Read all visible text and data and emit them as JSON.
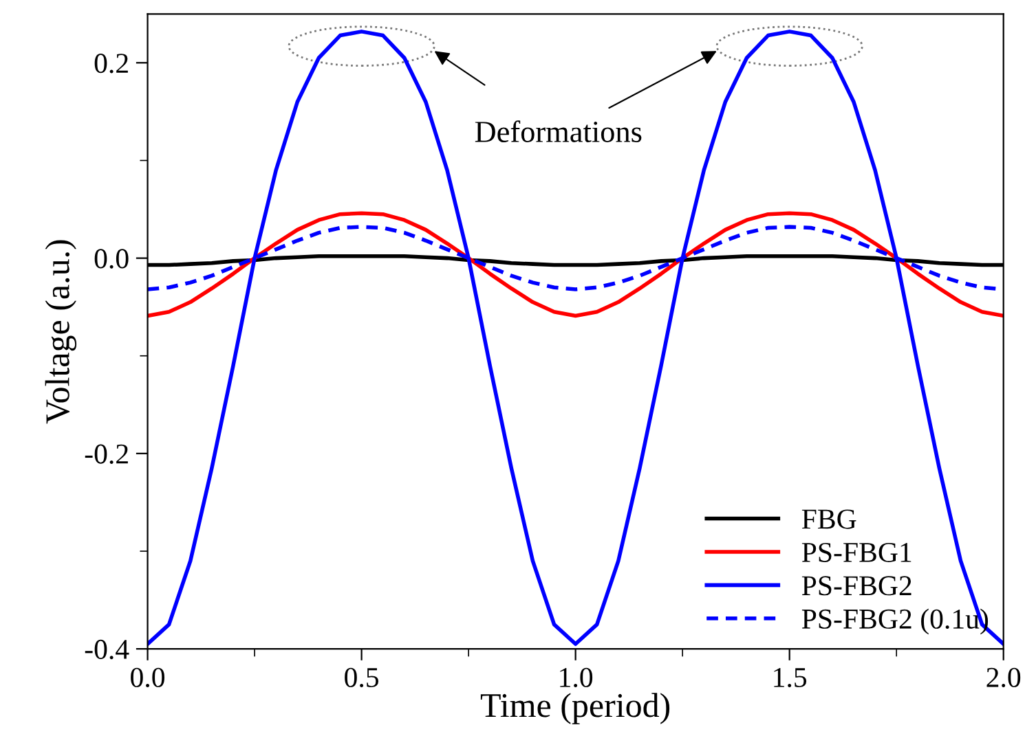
{
  "chart_data": {
    "type": "line",
    "xlabel": "Time (period)",
    "ylabel": "Voltage (a.u.)",
    "x": [
      0,
      0.05,
      0.1,
      0.15,
      0.2,
      0.25,
      0.3,
      0.35,
      0.4,
      0.45,
      0.5,
      0.55,
      0.6,
      0.65,
      0.7,
      0.75,
      0.8,
      0.85,
      0.9,
      0.95,
      1.0,
      1.05,
      1.1,
      1.15,
      1.2,
      1.25,
      1.3,
      1.35,
      1.4,
      1.45,
      1.5,
      1.55,
      1.6,
      1.65,
      1.7,
      1.75,
      1.8,
      1.85,
      1.9,
      1.95,
      2.0
    ],
    "series": [
      {
        "name": "FBG",
        "color": "#000000",
        "line_style": "solid",
        "values": [
          -0.007,
          -0.007,
          -0.006,
          -0.005,
          -0.003,
          -0.002,
          0.0,
          0.001,
          0.002,
          0.002,
          0.002,
          0.002,
          0.002,
          0.001,
          0.0,
          -0.002,
          -0.003,
          -0.005,
          -0.006,
          -0.007,
          -0.007,
          -0.007,
          -0.006,
          -0.005,
          -0.003,
          -0.002,
          0.0,
          0.001,
          0.002,
          0.002,
          0.002,
          0.002,
          0.002,
          0.001,
          0.0,
          -0.002,
          -0.003,
          -0.005,
          -0.006,
          -0.007,
          -0.007
        ]
      },
      {
        "name": "PS-FBG1",
        "color": "#ff0000",
        "line_style": "solid",
        "values": [
          -0.059,
          -0.055,
          -0.045,
          -0.031,
          -0.016,
          0.0,
          0.015,
          0.029,
          0.039,
          0.045,
          0.046,
          0.045,
          0.039,
          0.029,
          0.015,
          0.0,
          -0.016,
          -0.031,
          -0.045,
          -0.055,
          -0.059,
          -0.055,
          -0.045,
          -0.031,
          -0.016,
          0.0,
          0.015,
          0.029,
          0.039,
          0.045,
          0.046,
          0.045,
          0.039,
          0.029,
          0.015,
          0.0,
          -0.016,
          -0.031,
          -0.045,
          -0.055,
          -0.059
        ]
      },
      {
        "name": "PS-FBG2",
        "color": "#0000ff",
        "line_style": "solid",
        "values": [
          -0.395,
          -0.375,
          -0.31,
          -0.215,
          -0.11,
          0.0,
          0.09,
          0.16,
          0.205,
          0.228,
          0.232,
          0.228,
          0.205,
          0.16,
          0.09,
          0.0,
          -0.11,
          -0.215,
          -0.31,
          -0.375,
          -0.395,
          -0.375,
          -0.31,
          -0.215,
          -0.11,
          0.0,
          0.09,
          0.16,
          0.205,
          0.228,
          0.232,
          0.228,
          0.205,
          0.16,
          0.09,
          0.0,
          -0.11,
          -0.215,
          -0.31,
          -0.375,
          -0.395
        ]
      },
      {
        "name": "PS-FBG2 (0.1u)",
        "color": "#0000ff",
        "line_style": "dashed",
        "values": [
          -0.032,
          -0.03,
          -0.025,
          -0.018,
          -0.009,
          0.0,
          0.009,
          0.018,
          0.026,
          0.031,
          0.032,
          0.031,
          0.026,
          0.018,
          0.009,
          0.0,
          -0.009,
          -0.018,
          -0.025,
          -0.03,
          -0.032,
          -0.03,
          -0.025,
          -0.018,
          -0.009,
          0.0,
          0.009,
          0.018,
          0.026,
          0.031,
          0.032,
          0.031,
          0.026,
          0.018,
          0.009,
          0.0,
          -0.009,
          -0.018,
          -0.025,
          -0.03,
          -0.032
        ]
      }
    ],
    "xlim": [
      0,
      2.0
    ],
    "xticks": [
      {
        "value": 0,
        "label": "0.0"
      },
      0.5,
      {
        "value": 1,
        "label": "1.0"
      },
      1.5,
      {
        "value": 2,
        "label": "2.0"
      }
    ],
    "ylim": [
      -0.4,
      0.25
    ],
    "yticks": [
      -0.4,
      -0.2,
      {
        "value": 0,
        "label": "0.0"
      },
      0.2
    ],
    "grid": false,
    "legend": "bottom right",
    "marker": "none",
    "annotations": [
      "Deformations"
    ]
  }
}
